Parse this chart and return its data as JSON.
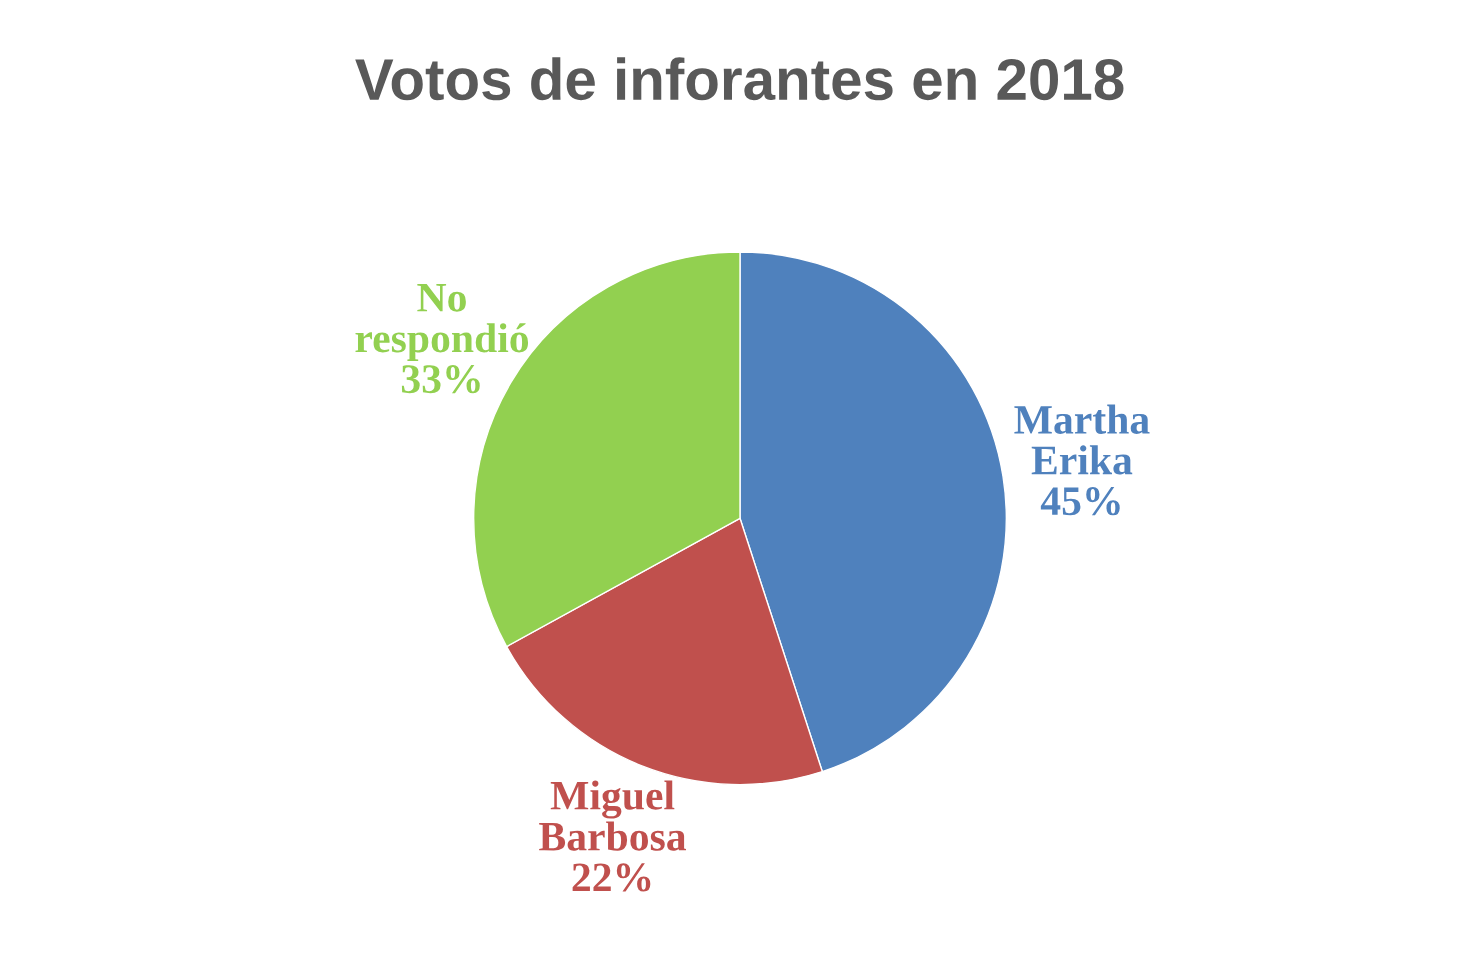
{
  "chart_data": {
    "type": "pie",
    "title": "Votos de inforantes en 2018",
    "categories": [
      "Martha Erika",
      "Miguel Barbosa",
      "No respondió"
    ],
    "values": [
      45,
      22,
      33
    ],
    "value_labels": [
      "45%",
      "22%",
      "33%"
    ],
    "colors": [
      "#4f81bd",
      "#c0504d",
      "#92d050"
    ],
    "legend": false
  }
}
